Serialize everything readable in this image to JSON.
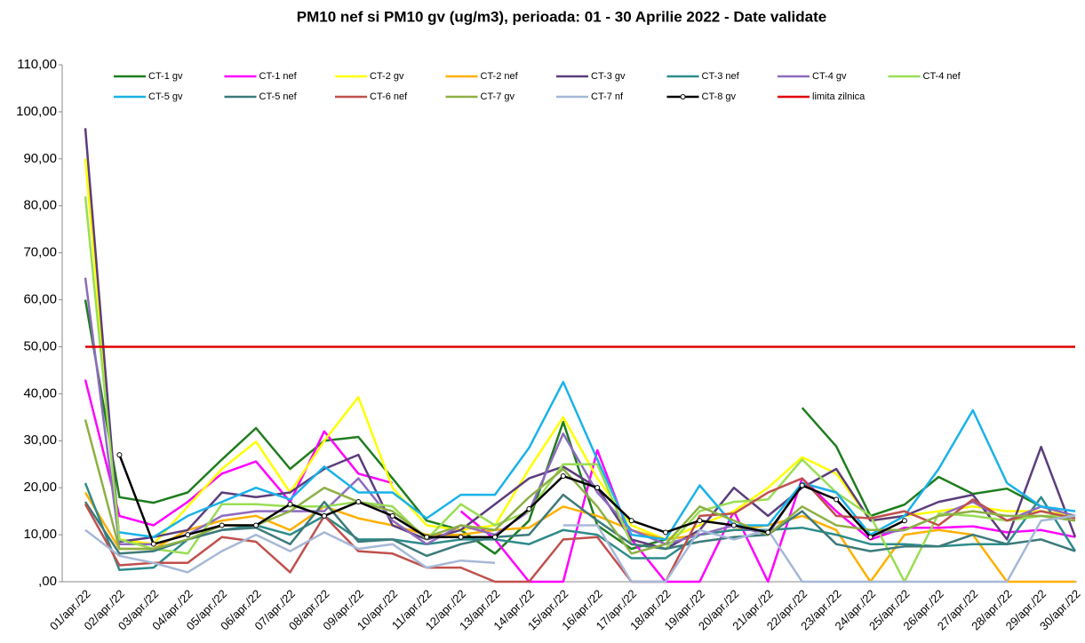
{
  "chart_data": {
    "type": "line",
    "title": "PM10 nef si PM10 gv (ug/m3), perioada: 01 - 30 Aprilie 2022 - Date validate",
    "categories": [
      "01/apr./22",
      "02/apr./22",
      "03/apr./22",
      "04/apr./22",
      "05/apr./22",
      "06/apr./22",
      "07/apr./22",
      "08/apr./22",
      "09/apr./22",
      "10/apr./22",
      "11/apr./22",
      "12/apr./22",
      "13/apr./22",
      "14/apr./22",
      "15/apr./22",
      "16/apr./22",
      "17/apr./22",
      "18/apr./22",
      "19/apr./22",
      "20/apr./22",
      "21/apr./22",
      "22/apr./22",
      "23/apr./22",
      "24/apr./22",
      "25/apr./22",
      "26/apr./22",
      "27/apr./22",
      "28/apr./22",
      "29/apr./22",
      "30/apr./22"
    ],
    "ylim": [
      0,
      110
    ],
    "yticks": [
      {
        "value": 0,
        "label": ",00"
      },
      {
        "value": 10,
        "label": "10,00"
      },
      {
        "value": 20,
        "label": "20,00"
      },
      {
        "value": 30,
        "label": "30,00"
      },
      {
        "value": 40,
        "label": "40,00"
      },
      {
        "value": 50,
        "label": "50,00"
      },
      {
        "value": 60,
        "label": "60,00"
      },
      {
        "value": 70,
        "label": "70,00"
      },
      {
        "value": 80,
        "label": "80,00"
      },
      {
        "value": 90,
        "label": "90,00"
      },
      {
        "value": 100,
        "label": "100,00"
      },
      {
        "value": 110,
        "label": "110,00"
      }
    ],
    "legend": "top",
    "series": [
      {
        "name": "CT-1 gv",
        "color": "#1e7d1e",
        "values": [
          60,
          18,
          16.8,
          19,
          26,
          32.7,
          24,
          30,
          30.8,
          22,
          13,
          11,
          6,
          13,
          34,
          12,
          7,
          9,
          null,
          null,
          null,
          37,
          28.8,
          14,
          16.4,
          22.3,
          18.7,
          19.8,
          16,
          14
        ]
      },
      {
        "name": "CT-1 nef",
        "color": "#ff00ff",
        "values": [
          43,
          14,
          12,
          17,
          23,
          25.6,
          17,
          32,
          23,
          21,
          null,
          15,
          9,
          0,
          0,
          28,
          9,
          0,
          0,
          15,
          0,
          22,
          15,
          9,
          11.5,
          11.5,
          11.8,
          10.5,
          11,
          9.5
        ]
      },
      {
        "name": "CT-2 gv",
        "color": "#ffff00",
        "values": [
          90,
          9,
          8,
          16,
          24,
          29.8,
          19,
          30,
          39.3,
          20,
          12,
          11,
          12,
          24,
          35,
          22,
          12,
          9,
          12,
          15,
          20,
          26.5,
          23,
          13,
          14,
          15,
          16,
          15,
          15,
          14
        ]
      },
      {
        "name": "CT-2 nef",
        "color": "#ffb000",
        "values": [
          19,
          7,
          7,
          11,
          13,
          14,
          11,
          16,
          13.5,
          12,
          10,
          10,
          11,
          11.5,
          16,
          14,
          11,
          9,
          10,
          11,
          12,
          14,
          11,
          0,
          10,
          11,
          10,
          0,
          0,
          0
        ]
      },
      {
        "name": "CT-3 gv",
        "color": "#5b3d7c",
        "values": [
          96.5,
          8.5,
          9.5,
          11,
          19,
          18,
          19,
          24,
          27,
          12,
          9,
          11,
          16.5,
          22,
          24.5,
          20,
          9,
          7,
          11,
          20,
          14,
          20,
          24,
          13,
          14,
          17,
          18.5,
          9,
          28.7,
          9.5
        ]
      },
      {
        "name": "CT-3 nef",
        "color": "#2e8b8b",
        "values": [
          21,
          2.5,
          3,
          9,
          11,
          12,
          10,
          14,
          9,
          9,
          8,
          9,
          9,
          8,
          11,
          10,
          5,
          5,
          10,
          11,
          11,
          11.5,
          10,
          8,
          8,
          7.5,
          8,
          8,
          18,
          6.5
        ]
      },
      {
        "name": "CT-4 gv",
        "color": "#8e6bbf",
        "values": [
          64.7,
          8,
          8,
          10,
          14,
          15,
          15,
          15,
          22,
          13,
          8,
          12,
          10,
          15,
          31.5,
          19,
          11,
          8,
          10,
          12,
          10,
          21,
          19,
          10,
          11,
          14,
          17,
          13,
          16,
          14
        ]
      },
      {
        "name": "CT-4 nef",
        "color": "#99dd55",
        "values": [
          82,
          9,
          7,
          6,
          16.5,
          16.5,
          16,
          16,
          17,
          16,
          9,
          16.5,
          12,
          15,
          25,
          25,
          8,
          7,
          15,
          17,
          17.5,
          26,
          19,
          14,
          0,
          14.5,
          14,
          13,
          14,
          14
        ]
      },
      {
        "name": "CT-5 gv",
        "color": "#1ab2e8",
        "values": [
          null,
          10.5,
          9.5,
          14,
          17,
          20,
          17.5,
          24.5,
          19,
          19,
          13.5,
          18.5,
          18.5,
          28.5,
          42.5,
          26,
          10,
          9,
          20.5,
          12,
          12,
          21,
          19,
          10,
          14,
          24,
          36.5,
          21,
          16,
          15
        ]
      },
      {
        "name": "CT-5 nef",
        "color": "#3d7a7a",
        "values": [
          17,
          6,
          6.5,
          9,
          11,
          11.5,
          8,
          17,
          8.5,
          9,
          5.5,
          8,
          9.5,
          10,
          18.5,
          13,
          8,
          7,
          8.5,
          9.5,
          10,
          15,
          8,
          6.5,
          7.5,
          7.5,
          10,
          8,
          9,
          6.5
        ]
      },
      {
        "name": "CT-6 nef",
        "color": "#c0504d",
        "values": [
          16.5,
          3.5,
          4,
          4,
          9.5,
          8.5,
          2,
          14,
          6.5,
          6,
          3,
          3,
          0,
          0,
          9,
          9.5,
          0,
          0,
          14,
          14.5,
          19,
          22,
          14,
          13.5,
          15,
          12,
          17.5,
          13,
          15,
          13.5
        ]
      },
      {
        "name": "CT-7 gv",
        "color": "#8db045",
        "values": [
          34.5,
          7,
          7,
          9,
          12,
          12,
          15,
          20,
          17,
          15,
          9.5,
          12,
          11,
          18,
          24,
          16,
          6,
          8,
          16,
          13,
          10,
          16,
          12,
          11,
          11,
          14,
          15,
          14,
          14,
          13
        ]
      },
      {
        "name": "CT-7 nf",
        "color": "#a6b8d6",
        "values": [
          11,
          5.5,
          4,
          2,
          6.5,
          10,
          6.5,
          10.5,
          7,
          8,
          3,
          4.5,
          4,
          null,
          12,
          12,
          0,
          0,
          11,
          9,
          11,
          0,
          0,
          0,
          0,
          0,
          0,
          0,
          13,
          14
        ]
      },
      {
        "name": "CT-8 gv",
        "color": "#000000",
        "markers": true,
        "values": [
          null,
          27,
          8,
          10,
          12,
          12,
          16.5,
          14,
          17,
          14,
          9.5,
          9.5,
          9.5,
          15.5,
          22.5,
          20,
          13,
          10.5,
          13,
          12,
          10.5,
          20.5,
          17.5,
          9.5,
          13,
          null,
          null,
          null,
          null,
          null
        ]
      },
      {
        "name": "limita zilnica",
        "color": "#e00000",
        "values": [
          50,
          50,
          50,
          50,
          50,
          50,
          50,
          50,
          50,
          50,
          50,
          50,
          50,
          50,
          50,
          50,
          50,
          50,
          50,
          50,
          50,
          50,
          50,
          50,
          50,
          50,
          50,
          50,
          50,
          50
        ]
      }
    ]
  }
}
